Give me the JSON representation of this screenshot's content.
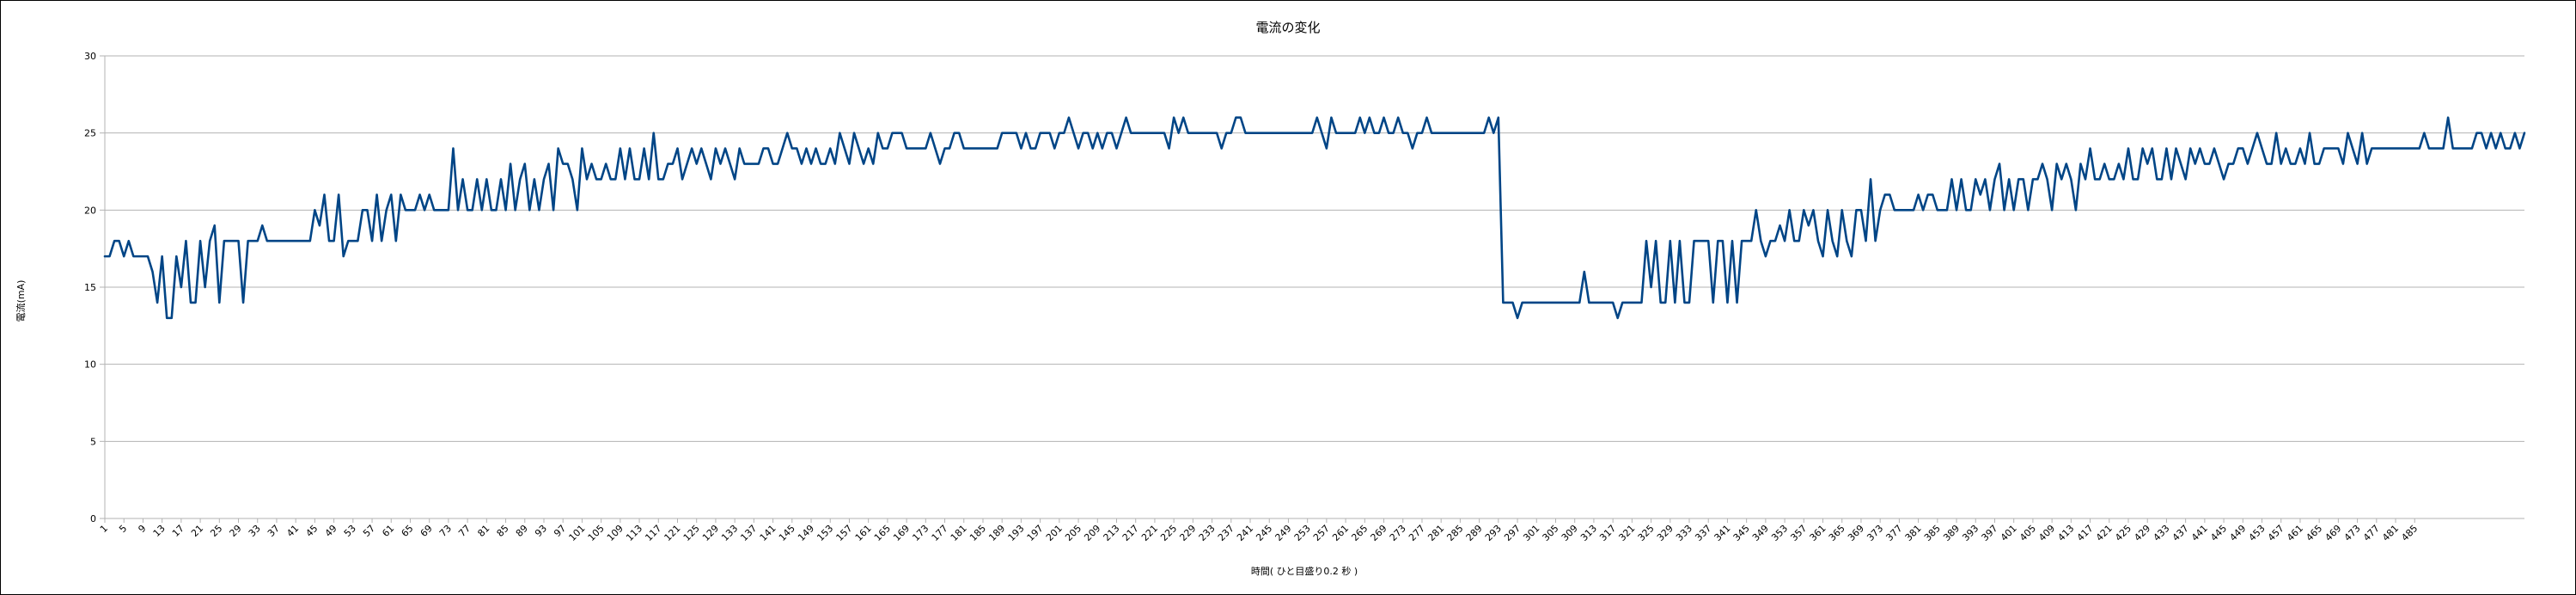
{
  "chart_data": {
    "type": "line",
    "title": "電流の変化",
    "xlabel": "時間( ひと目盛り0.2 秒 )",
    "ylabel": "電流(mA)",
    "ylim": [
      0,
      30
    ],
    "yticks": [
      0,
      5,
      10,
      15,
      20,
      25,
      30
    ],
    "x_tick_labels": [
      "1",
      "5",
      "9",
      "13",
      "17",
      "21",
      "25",
      "29",
      "33",
      "37",
      "41",
      "45",
      "49",
      "53",
      "57",
      "61",
      "65",
      "69",
      "73",
      "77",
      "81",
      "85",
      "89",
      "93",
      "97",
      "101",
      "105",
      "109",
      "113",
      "117",
      "121",
      "125",
      "129",
      "133",
      "137",
      "141",
      "145",
      "149",
      "153",
      "157",
      "161",
      "165",
      "169",
      "173",
      "177",
      "181",
      "185",
      "189",
      "193",
      "197",
      "201",
      "205",
      "209",
      "213",
      "217",
      "221",
      "225",
      "229",
      "233",
      "237",
      "241",
      "245",
      "249",
      "253",
      "257",
      "261",
      "265",
      "269",
      "273",
      "277",
      "281",
      "285",
      "289",
      "293",
      "297",
      "301",
      "305",
      "309",
      "313",
      "317",
      "321",
      "325",
      "329",
      "333",
      "337",
      "341",
      "345",
      "349",
      "353",
      "357",
      "361",
      "365",
      "369",
      "373",
      "377",
      "381",
      "385",
      "389",
      "393",
      "397",
      "401",
      "405",
      "409",
      "413",
      "417",
      "421",
      "425",
      "429",
      "433",
      "437",
      "441",
      "445",
      "449",
      "453",
      "457",
      "461",
      "465",
      "469",
      "473",
      "477",
      "481",
      "485"
    ],
    "x_start": 1,
    "gridlines": "horizontal",
    "legend": "none",
    "line_color": "#004586",
    "series": [
      {
        "values": [
          17,
          17,
          18,
          18,
          17,
          18,
          17,
          17,
          17,
          17,
          16,
          14,
          17,
          13,
          13,
          17,
          15,
          18,
          14,
          14,
          18,
          15,
          18,
          19,
          14,
          18,
          18,
          18,
          18,
          14,
          18,
          18,
          18,
          19,
          18,
          18,
          18,
          18,
          18,
          18,
          18,
          18,
          18,
          18,
          20,
          19,
          21,
          18,
          18,
          21,
          17,
          18,
          18,
          18,
          20,
          20,
          18,
          21,
          18,
          20,
          21,
          18,
          21,
          20,
          20,
          20,
          21,
          20,
          21,
          20,
          20,
          20,
          20,
          24,
          20,
          22,
          20,
          20,
          22,
          20,
          22,
          20,
          20,
          22,
          20,
          23,
          20,
          22,
          23,
          20,
          22,
          20,
          22,
          23,
          20,
          24,
          23,
          23,
          22,
          20,
          24,
          22,
          23,
          22,
          22,
          23,
          22,
          22,
          24,
          22,
          24,
          22,
          22,
          24,
          22,
          25,
          22,
          22,
          23,
          23,
          24,
          22,
          23,
          24,
          23,
          24,
          23,
          22,
          24,
          23,
          24,
          23,
          22,
          24,
          23,
          23,
          23,
          23,
          24,
          24,
          23,
          23,
          24,
          25,
          24,
          24,
          23,
          24,
          23,
          24,
          23,
          23,
          24,
          23,
          25,
          24,
          23,
          25,
          24,
          23,
          24,
          23,
          25,
          24,
          24,
          25,
          25,
          25,
          24,
          24,
          24,
          24,
          24,
          25,
          24,
          23,
          24,
          24,
          25,
          25,
          24,
          24,
          24,
          24,
          24,
          24,
          24,
          24,
          25,
          25,
          25,
          25,
          24,
          25,
          24,
          24,
          25,
          25,
          25,
          24,
          25,
          25,
          26,
          25,
          24,
          25,
          25,
          24,
          25,
          24,
          25,
          25,
          24,
          25,
          26,
          25,
          25,
          25,
          25,
          25,
          25,
          25,
          25,
          24,
          26,
          25,
          26,
          25,
          25,
          25,
          25,
          25,
          25,
          25,
          24,
          25,
          25,
          26,
          26,
          25,
          25,
          25,
          25,
          25,
          25,
          25,
          25,
          25,
          25,
          25,
          25,
          25,
          25,
          25,
          26,
          25,
          24,
          26,
          25,
          25,
          25,
          25,
          25,
          26,
          25,
          26,
          25,
          25,
          26,
          25,
          25,
          26,
          25,
          25,
          24,
          25,
          25,
          26,
          25,
          25,
          25,
          25,
          25,
          25,
          25,
          25,
          25,
          25,
          25,
          25,
          26,
          25,
          26,
          14,
          14,
          14,
          13,
          14,
          14,
          14,
          14,
          14,
          14,
          14,
          14,
          14,
          14,
          14,
          14,
          14,
          16,
          14,
          14,
          14,
          14,
          14,
          14,
          13,
          14,
          14,
          14,
          14,
          14,
          18,
          15,
          18,
          14,
          14,
          18,
          14,
          18,
          14,
          14,
          18,
          18,
          18,
          18,
          14,
          18,
          18,
          14,
          18,
          14,
          18,
          18,
          18,
          20,
          18,
          17,
          18,
          18,
          19,
          18,
          20,
          18,
          18,
          20,
          19,
          20,
          18,
          17,
          20,
          18,
          17,
          20,
          18,
          17,
          20,
          20,
          18,
          22,
          18,
          20,
          21,
          21,
          20,
          20,
          20,
          20,
          20,
          21,
          20,
          21,
          21,
          20,
          20,
          20,
          22,
          20,
          22,
          20,
          20,
          22,
          21,
          22,
          20,
          22,
          23,
          20,
          22,
          20,
          22,
          22,
          20,
          22,
          22,
          23,
          22,
          20,
          23,
          22,
          23,
          22,
          20,
          23,
          22,
          24,
          22,
          22,
          23,
          22,
          22,
          23,
          22,
          24,
          22,
          22,
          24,
          23,
          24,
          22,
          22,
          24,
          22,
          24,
          23,
          22,
          24,
          23,
          24,
          23,
          23,
          24,
          23,
          22,
          23,
          23,
          24,
          24,
          23,
          24,
          25,
          24,
          23,
          23,
          25,
          23,
          24,
          23,
          23,
          24,
          23,
          25,
          23,
          23,
          24,
          24,
          24,
          24,
          23,
          25,
          24,
          23,
          25,
          23,
          24,
          24,
          24,
          24,
          24,
          24,
          24,
          24,
          24,
          24,
          24,
          25,
          24,
          24,
          24,
          24,
          26,
          24,
          24,
          24,
          24,
          24,
          25,
          25,
          24,
          25,
          24,
          25,
          24,
          24,
          25,
          24,
          25
        ]
      }
    ]
  }
}
